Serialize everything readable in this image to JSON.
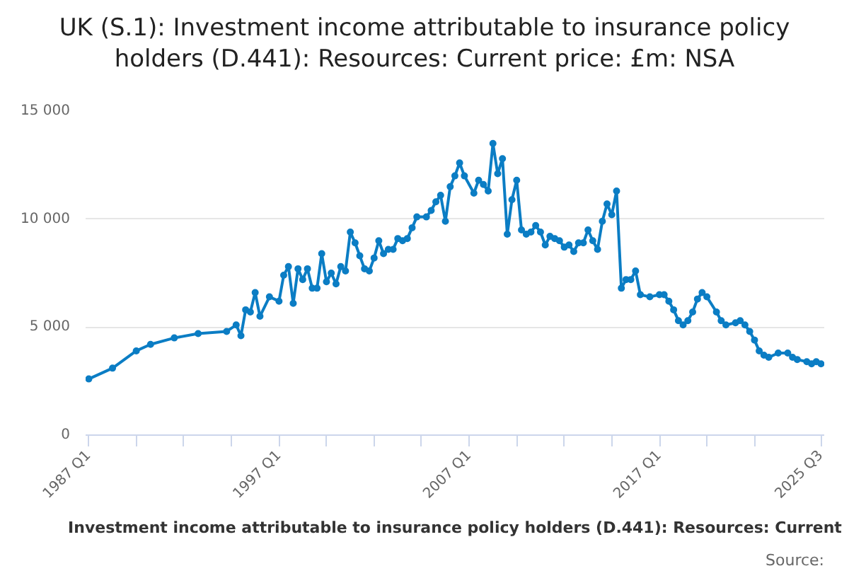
{
  "chart_data": {
    "type": "line",
    "title": "UK (S.1): Investment income attributable to insurance policy holders (D.441): Resources: Current price: £m: NSA",
    "xlabel": "Investment income attributable to insurance policy holders (D.441): Resources: Current",
    "annotations": [
      "Source:"
    ],
    "x": [
      "1987-01",
      "1988-04",
      "1989-07",
      "1990-04",
      "1991-07",
      "1992-10",
      "1994-04",
      "1994-10",
      "1995-01",
      "1995-04",
      "1995-07",
      "1995-10",
      "1996-01",
      "1996-07",
      "1997-01",
      "1997-04",
      "1997-07",
      "1997-10",
      "1998-01",
      "1998-04",
      "1998-07",
      "1998-10",
      "1999-01",
      "1999-04",
      "1999-07",
      "1999-10",
      "2000-01",
      "2000-04",
      "2000-07",
      "2000-10",
      "2001-01",
      "2001-04",
      "2001-07",
      "2001-10",
      "2002-01",
      "2002-04",
      "2002-07",
      "2002-10",
      "2003-01",
      "2003-04",
      "2003-07",
      "2003-10",
      "2004-01",
      "2004-04",
      "2004-10",
      "2005-01",
      "2005-04",
      "2005-07",
      "2005-10",
      "2006-01",
      "2006-04",
      "2006-07",
      "2006-10",
      "2007-04",
      "2007-07",
      "2007-10",
      "2008-01",
      "2008-04",
      "2008-07",
      "2008-10",
      "2009-01",
      "2009-04",
      "2009-07",
      "2009-10",
      "2010-01",
      "2010-04",
      "2010-07",
      "2010-10",
      "2011-01",
      "2011-04",
      "2011-07",
      "2011-10",
      "2012-01",
      "2012-04",
      "2012-07",
      "2012-10",
      "2013-01",
      "2013-04",
      "2013-07",
      "2013-10",
      "2014-01",
      "2014-04",
      "2014-07",
      "2014-10",
      "2015-01",
      "2015-04",
      "2015-07",
      "2015-10",
      "2016-01",
      "2016-07",
      "2017-01",
      "2017-04",
      "2017-07",
      "2017-10",
      "2018-01",
      "2018-04",
      "2018-07",
      "2018-10",
      "2019-01",
      "2019-04",
      "2019-07",
      "2020-01",
      "2020-04",
      "2020-07",
      "2021-01",
      "2021-04",
      "2021-07",
      "2021-10",
      "2022-01",
      "2022-04",
      "2022-07",
      "2022-10",
      "2023-04",
      "2023-10",
      "2024-01",
      "2024-04",
      "2024-10",
      "2025-01",
      "2025-04",
      "2025-07"
    ],
    "series": [
      {
        "color": "#0b7dc4",
        "values": [
          2600,
          3100,
          3900,
          4200,
          4500,
          4700,
          4800,
          5100,
          4600,
          5800,
          5700,
          6600,
          5500,
          6400,
          6200,
          7400,
          7800,
          6100,
          7700,
          7200,
          7700,
          6800,
          6800,
          8400,
          7100,
          7500,
          7000,
          7800,
          7600,
          9400,
          8900,
          8300,
          7700,
          7600,
          8200,
          9000,
          8400,
          8600,
          8600,
          9100,
          9000,
          9100,
          9600,
          10100,
          10100,
          10400,
          10800,
          11100,
          9900,
          11500,
          12000,
          12600,
          12000,
          11200,
          11800,
          11600,
          11300,
          13500,
          12100,
          12800,
          9300,
          10900,
          11800,
          9500,
          9300,
          9400,
          9700,
          9400,
          8800,
          9200,
          9100,
          9000,
          8700,
          8800,
          8500,
          8900,
          8900,
          9500,
          9000,
          8600,
          9900,
          10700,
          10200,
          11300,
          6800,
          7200,
          7200,
          7600,
          6500,
          6400,
          6500,
          6500,
          6200,
          5800,
          5300,
          5100,
          5300,
          5700,
          6300,
          6600,
          6400,
          5700,
          5300,
          5100,
          5200,
          5300,
          5100,
          4800,
          4400,
          3900,
          3700,
          3600,
          3800,
          3800,
          3600,
          3500,
          3400,
          3300,
          3400,
          3300
        ]
      }
    ],
    "xlim": [
      "1986-11",
      "2025-09"
    ],
    "xticks": [
      {
        "value": "1987-01",
        "label": "1987 Q1"
      },
      {
        "value": "1989-07",
        "label": null
      },
      {
        "value": "1992-01",
        "label": null
      },
      {
        "value": "1994-07",
        "label": null
      },
      {
        "value": "1997-01",
        "label": "1997 Q1"
      },
      {
        "value": "1999-07",
        "label": null
      },
      {
        "value": "2002-01",
        "label": null
      },
      {
        "value": "2004-07",
        "label": null
      },
      {
        "value": "2007-01",
        "label": "2007 Q1"
      },
      {
        "value": "2009-07",
        "label": null
      },
      {
        "value": "2012-01",
        "label": null
      },
      {
        "value": "2014-07",
        "label": null
      },
      {
        "value": "2017-01",
        "label": "2017 Q1"
      },
      {
        "value": "2019-07",
        "label": null
      },
      {
        "value": "2022-01",
        "label": null
      },
      {
        "value": "2025-07",
        "label": "2025 Q3"
      }
    ],
    "ylim": [
      0,
      15000
    ],
    "yticks": [
      {
        "value": 0,
        "label": "0"
      },
      {
        "value": 5000,
        "label": "5 000"
      },
      {
        "value": 10000,
        "label": "10 000"
      },
      {
        "value": 15000,
        "label": "15 000"
      }
    ],
    "grid": "y",
    "marker": "circle",
    "line_style": "solid"
  }
}
